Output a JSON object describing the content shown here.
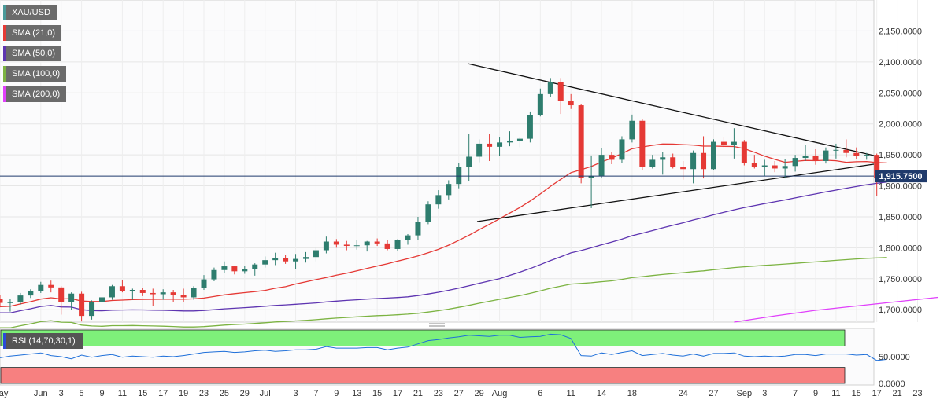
{
  "legend": [
    {
      "label": "XAU/USD",
      "color": "#4a9a9a"
    },
    {
      "label": "SMA (21,0)",
      "color": "#e53935"
    },
    {
      "label": "SMA (50,0)",
      "color": "#5e35b1"
    },
    {
      "label": "SMA (100,0)",
      "color": "#7cb342"
    },
    {
      "label": "SMA (200,0)",
      "color": "#e040fb"
    }
  ],
  "rsi_label": "RSI (14,70,30,1)",
  "price_label": "1,915.7500",
  "colors": {
    "up": "#2e7d6e",
    "down": "#e53935",
    "sma21": "#e53935",
    "sma50": "#5e35b1",
    "sma100": "#7cb342",
    "sma200": "#e040fb",
    "rsi": "#1e6fd9",
    "ob": "#7ef07a",
    "os": "#f78080",
    "price_line": "#1f3a6b"
  },
  "chart_data": {
    "type": "candlestick",
    "title": "",
    "symbol": "XAU/USD",
    "ylim": [
      1680,
      2200
    ],
    "y_ticks": [
      "2,150.0000",
      "2,100.0000",
      "2,050.0000",
      "2,000.0000",
      "1,950.0000",
      "1,900.0000",
      "1,850.0000",
      "1,800.0000",
      "1,750.0000",
      "1,700.0000"
    ],
    "y_tick_values": [
      2150,
      2100,
      2050,
      2000,
      1950,
      1900,
      1850,
      1800,
      1750,
      1700
    ],
    "last_price": 1915.75,
    "x_labels": [
      "May",
      "Jun",
      "3",
      "5",
      "9",
      "11",
      "15",
      "17",
      "19",
      "23",
      "25",
      "29",
      "Jul",
      "3",
      "7",
      "9",
      "13",
      "15",
      "17",
      "21",
      "23",
      "27",
      "29",
      "Aug",
      "6",
      "11",
      "14",
      "18",
      "24",
      "27",
      "Sep",
      "3",
      "7",
      "9",
      "11",
      "15",
      "17",
      "21",
      "23"
    ],
    "x_label_index": [
      0,
      4,
      6,
      8,
      10,
      12,
      14,
      16,
      18,
      20,
      22,
      24,
      26,
      29,
      31,
      33,
      35,
      37,
      39,
      41,
      43,
      45,
      47,
      49,
      53,
      56,
      59,
      62,
      67,
      70,
      73,
      75,
      78,
      80,
      82,
      84,
      86,
      88,
      90
    ],
    "candles": [
      {
        "o": 1717,
        "h": 1724,
        "l": 1704,
        "c": 1711
      },
      {
        "o": 1711,
        "h": 1717,
        "l": 1697,
        "c": 1712
      },
      {
        "o": 1712,
        "h": 1727,
        "l": 1708,
        "c": 1723
      },
      {
        "o": 1723,
        "h": 1733,
        "l": 1719,
        "c": 1730
      },
      {
        "o": 1730,
        "h": 1745,
        "l": 1727,
        "c": 1740
      },
      {
        "o": 1740,
        "h": 1747,
        "l": 1728,
        "c": 1736
      },
      {
        "o": 1736,
        "h": 1738,
        "l": 1692,
        "c": 1712
      },
      {
        "o": 1712,
        "h": 1728,
        "l": 1700,
        "c": 1726
      },
      {
        "o": 1726,
        "h": 1729,
        "l": 1681,
        "c": 1690
      },
      {
        "o": 1690,
        "h": 1715,
        "l": 1684,
        "c": 1712
      },
      {
        "o": 1712,
        "h": 1723,
        "l": 1705,
        "c": 1720
      },
      {
        "o": 1720,
        "h": 1740,
        "l": 1716,
        "c": 1738
      },
      {
        "o": 1738,
        "h": 1748,
        "l": 1728,
        "c": 1730
      },
      {
        "o": 1730,
        "h": 1734,
        "l": 1716,
        "c": 1732
      },
      {
        "o": 1732,
        "h": 1735,
        "l": 1722,
        "c": 1727
      },
      {
        "o": 1727,
        "h": 1734,
        "l": 1706,
        "c": 1725
      },
      {
        "o": 1725,
        "h": 1733,
        "l": 1716,
        "c": 1728
      },
      {
        "o": 1728,
        "h": 1732,
        "l": 1713,
        "c": 1724
      },
      {
        "o": 1724,
        "h": 1734,
        "l": 1712,
        "c": 1720
      },
      {
        "o": 1720,
        "h": 1738,
        "l": 1716,
        "c": 1735
      },
      {
        "o": 1735,
        "h": 1756,
        "l": 1732,
        "c": 1749
      },
      {
        "o": 1749,
        "h": 1768,
        "l": 1746,
        "c": 1764
      },
      {
        "o": 1764,
        "h": 1778,
        "l": 1759,
        "c": 1770
      },
      {
        "o": 1770,
        "h": 1771,
        "l": 1757,
        "c": 1762
      },
      {
        "o": 1762,
        "h": 1770,
        "l": 1758,
        "c": 1766
      },
      {
        "o": 1766,
        "h": 1775,
        "l": 1755,
        "c": 1773
      },
      {
        "o": 1773,
        "h": 1786,
        "l": 1768,
        "c": 1780
      },
      {
        "o": 1780,
        "h": 1792,
        "l": 1772,
        "c": 1784
      },
      {
        "o": 1784,
        "h": 1789,
        "l": 1774,
        "c": 1778
      },
      {
        "o": 1778,
        "h": 1790,
        "l": 1766,
        "c": 1782
      },
      {
        "o": 1782,
        "h": 1793,
        "l": 1776,
        "c": 1785
      },
      {
        "o": 1785,
        "h": 1800,
        "l": 1778,
        "c": 1796
      },
      {
        "o": 1796,
        "h": 1818,
        "l": 1791,
        "c": 1810
      },
      {
        "o": 1810,
        "h": 1814,
        "l": 1800,
        "c": 1805
      },
      {
        "o": 1805,
        "h": 1811,
        "l": 1796,
        "c": 1803
      },
      {
        "o": 1803,
        "h": 1812,
        "l": 1797,
        "c": 1804
      },
      {
        "o": 1804,
        "h": 1811,
        "l": 1794,
        "c": 1810
      },
      {
        "o": 1810,
        "h": 1815,
        "l": 1803,
        "c": 1807
      },
      {
        "o": 1807,
        "h": 1812,
        "l": 1796,
        "c": 1798
      },
      {
        "o": 1798,
        "h": 1814,
        "l": 1795,
        "c": 1812
      },
      {
        "o": 1812,
        "h": 1822,
        "l": 1805,
        "c": 1820
      },
      {
        "o": 1820,
        "h": 1850,
        "l": 1812,
        "c": 1842
      },
      {
        "o": 1842,
        "h": 1875,
        "l": 1838,
        "c": 1870
      },
      {
        "o": 1870,
        "h": 1893,
        "l": 1863,
        "c": 1885
      },
      {
        "o": 1885,
        "h": 1909,
        "l": 1878,
        "c": 1903
      },
      {
        "o": 1903,
        "h": 1937,
        "l": 1896,
        "c": 1931
      },
      {
        "o": 1931,
        "h": 1984,
        "l": 1907,
        "c": 1947
      },
      {
        "o": 1947,
        "h": 1975,
        "l": 1938,
        "c": 1968
      },
      {
        "o": 1968,
        "h": 1984,
        "l": 1940,
        "c": 1963
      },
      {
        "o": 1963,
        "h": 1978,
        "l": 1948,
        "c": 1970
      },
      {
        "o": 1970,
        "h": 1988,
        "l": 1964,
        "c": 1973
      },
      {
        "o": 1973,
        "h": 1979,
        "l": 1962,
        "c": 1976
      },
      {
        "o": 1976,
        "h": 2020,
        "l": 1970,
        "c": 2014
      },
      {
        "o": 2014,
        "h": 2057,
        "l": 2012,
        "c": 2048
      },
      {
        "o": 2048,
        "h": 2074,
        "l": 2043,
        "c": 2067
      },
      {
        "o": 2067,
        "h": 2074,
        "l": 2016,
        "c": 2037
      },
      {
        "o": 2037,
        "h": 2048,
        "l": 2024,
        "c": 2030
      },
      {
        "o": 2030,
        "h": 2032,
        "l": 1904,
        "c": 1913
      },
      {
        "o": 1913,
        "h": 1949,
        "l": 1864,
        "c": 1916
      },
      {
        "o": 1916,
        "h": 1961,
        "l": 1912,
        "c": 1950
      },
      {
        "o": 1950,
        "h": 1955,
        "l": 1935,
        "c": 1942
      },
      {
        "o": 1942,
        "h": 1980,
        "l": 1937,
        "c": 1975
      },
      {
        "o": 1975,
        "h": 2015,
        "l": 1970,
        "c": 2005
      },
      {
        "o": 2005,
        "h": 2008,
        "l": 1925,
        "c": 1930
      },
      {
        "o": 1930,
        "h": 1950,
        "l": 1928,
        "c": 1942
      },
      {
        "o": 1942,
        "h": 1955,
        "l": 1918,
        "c": 1946
      },
      {
        "o": 1946,
        "h": 1952,
        "l": 1928,
        "c": 1930
      },
      {
        "o": 1930,
        "h": 1940,
        "l": 1910,
        "c": 1927
      },
      {
        "o": 1927,
        "h": 1957,
        "l": 1904,
        "c": 1953
      },
      {
        "o": 1953,
        "h": 1980,
        "l": 1912,
        "c": 1927
      },
      {
        "o": 1927,
        "h": 1975,
        "l": 1926,
        "c": 1971
      },
      {
        "o": 1971,
        "h": 1978,
        "l": 1962,
        "c": 1966
      },
      {
        "o": 1966,
        "h": 1993,
        "l": 1944,
        "c": 1971
      },
      {
        "o": 1971,
        "h": 1974,
        "l": 1933,
        "c": 1937
      },
      {
        "o": 1937,
        "h": 1950,
        "l": 1928,
        "c": 1930
      },
      {
        "o": 1930,
        "h": 1942,
        "l": 1916,
        "c": 1933
      },
      {
        "o": 1933,
        "h": 1940,
        "l": 1922,
        "c": 1928
      },
      {
        "o": 1928,
        "h": 1943,
        "l": 1912,
        "c": 1932
      },
      {
        "o": 1932,
        "h": 1950,
        "l": 1923,
        "c": 1945
      },
      {
        "o": 1945,
        "h": 1966,
        "l": 1940,
        "c": 1948
      },
      {
        "o": 1948,
        "h": 1959,
        "l": 1934,
        "c": 1940
      },
      {
        "o": 1940,
        "h": 1962,
        "l": 1936,
        "c": 1957
      },
      {
        "o": 1957,
        "h": 1968,
        "l": 1944,
        "c": 1958
      },
      {
        "o": 1958,
        "h": 1975,
        "l": 1946,
        "c": 1953
      },
      {
        "o": 1953,
        "h": 1962,
        "l": 1943,
        "c": 1948
      },
      {
        "o": 1948,
        "h": 1953,
        "l": 1942,
        "c": 1950
      },
      {
        "o": 1950,
        "h": 1952,
        "l": 1883,
        "c": 1912
      },
      {
        "o": 1912,
        "h": 1920,
        "l": 1907,
        "c": 1916
      }
    ],
    "sma21": [
      [
        0,
        1688
      ],
      [
        6,
        1697
      ],
      [
        14,
        1703
      ],
      [
        19,
        1707
      ],
      [
        25,
        1717
      ],
      [
        33,
        1730
      ],
      [
        38,
        1742
      ],
      [
        43,
        1760
      ],
      [
        47,
        1776
      ],
      [
        51,
        1797
      ],
      [
        55,
        1814
      ],
      [
        58,
        1836
      ],
      [
        62,
        1856
      ],
      [
        65,
        1887
      ],
      [
        69,
        1916
      ],
      [
        71,
        1927
      ],
      [
        74,
        1941
      ],
      [
        79,
        1958
      ],
      [
        84,
        1970
      ],
      [
        87,
        1974
      ],
      [
        91,
        1976
      ],
      [
        94,
        1975
      ],
      [
        97,
        1976
      ],
      [
        100,
        1967
      ],
      [
        102,
        1970
      ],
      [
        106,
        1972
      ],
      [
        109,
        1974
      ],
      [
        111,
        1965
      ],
      [
        114,
        1960
      ],
      [
        116,
        1957
      ],
      [
        120,
        1952
      ],
      [
        124,
        1947
      ],
      [
        126,
        1944
      ],
      [
        130,
        1944
      ],
      [
        134,
        1945
      ],
      [
        137,
        1946
      ],
      [
        139,
        1948
      ]
    ],
    "sma200": [
      [
        100,
        1680
      ],
      [
        104,
        1690
      ],
      [
        108,
        1699
      ],
      [
        112,
        1706
      ],
      [
        116,
        1713
      ],
      [
        120,
        1720
      ]
    ],
    "sma_note": "",
    "rsi_ylim": [
      0,
      100
    ],
    "rsi_ticks": [
      "50.0000",
      "0.0000"
    ],
    "rsi_tick_values": [
      50,
      0
    ],
    "rsi_ob": 70,
    "rsi_os": 30,
    "rsi": [
      48,
      51,
      53,
      55,
      57,
      52,
      50,
      46,
      53,
      49,
      52,
      54,
      49,
      51,
      50,
      49,
      51,
      50,
      52,
      55,
      58,
      59,
      60,
      58,
      59,
      61,
      62,
      60,
      61,
      63,
      63,
      64,
      69,
      66,
      66,
      66,
      67,
      67,
      63,
      66,
      68,
      74,
      80,
      82,
      85,
      87,
      90,
      89,
      88,
      90,
      90,
      86,
      87,
      88,
      92,
      91,
      84,
      52,
      51,
      57,
      54,
      58,
      61,
      52,
      54,
      56,
      53,
      51,
      55,
      51,
      56,
      56,
      57,
      51,
      50,
      51,
      50,
      51,
      54,
      54,
      52,
      55,
      55,
      55,
      53,
      54,
      43,
      45
    ]
  }
}
